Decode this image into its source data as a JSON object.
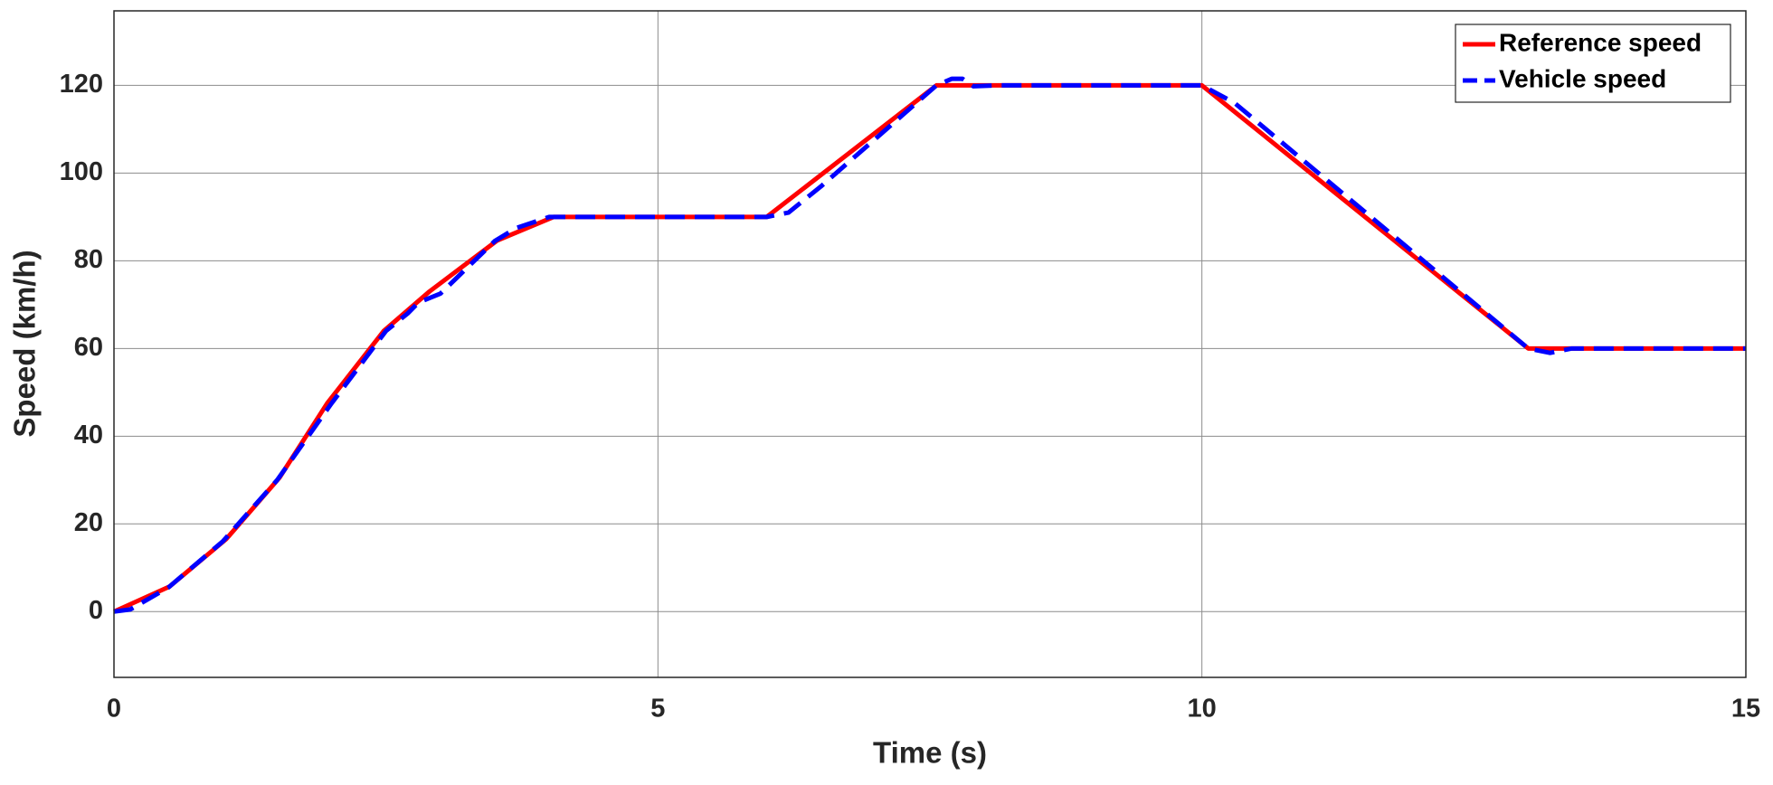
{
  "chart_data": {
    "type": "line",
    "x_label": "Time (s)",
    "y_label": "Speed (km/h)",
    "xlim": [
      0,
      15
    ],
    "ylim": [
      -15,
      137
    ],
    "xticks": [
      0,
      5,
      10,
      15
    ],
    "yticks": [
      0,
      20,
      40,
      60,
      80,
      100,
      120
    ],
    "grid": true,
    "legend": "upper right",
    "series": [
      {
        "name": "Reference speed",
        "color": "#ff0000",
        "style": "solid",
        "x": [
          0,
          0.51,
          1.03,
          1.52,
          1.96,
          2.48,
          2.9,
          3.52,
          4.04,
          6,
          7.56,
          10,
          13.0,
          15
        ],
        "values": [
          0,
          5.7,
          16.5,
          30.5,
          47.5,
          64,
          73,
          84.6,
          90,
          90,
          120,
          120,
          60,
          60
        ]
      },
      {
        "name": "Vehicle speed",
        "color": "#0000ff",
        "style": "dashed",
        "x": [
          0,
          0.15,
          0.5,
          1,
          1.5,
          2,
          2.5,
          2.7,
          2.8,
          3,
          3.5,
          3.7,
          4,
          6,
          6.2,
          6.5,
          7.56,
          7.7,
          7.8,
          7.9,
          8.1,
          10,
          10.3,
          13.0,
          13.2,
          13.4,
          15
        ],
        "values": [
          0,
          0.5,
          5.5,
          16,
          30,
          47.5,
          64,
          68,
          70.5,
          72.5,
          84.5,
          87.5,
          90,
          90,
          91,
          97,
          120,
          121.5,
          121.5,
          119.8,
          120,
          120,
          116,
          60,
          59,
          60,
          60
        ]
      }
    ]
  }
}
